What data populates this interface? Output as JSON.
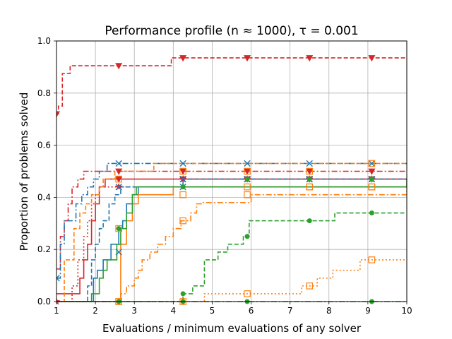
{
  "chart_data": {
    "type": "line",
    "title": "Performance profile (n ≈ 1000), τ = 0.001",
    "xlabel": "Evaluations / minimum evaluations of any solver",
    "ylabel": "Proportion of problems solved",
    "xlim": [
      1,
      10
    ],
    "ylim": [
      0,
      1
    ],
    "x_ticks": [
      "1",
      "2",
      "3",
      "4",
      "5",
      "6",
      "7",
      "8",
      "9",
      "10"
    ],
    "y_ticks": [
      "0.0",
      "0.2",
      "0.4",
      "0.6",
      "0.8",
      "1.0"
    ],
    "grid": true,
    "legend": "none",
    "series": [
      {
        "name": "red-triangle-dashed",
        "color": "#d62728",
        "dash": "6,3",
        "marker": "triangle",
        "x": [
          1,
          1.05,
          1.15,
          1.35,
          1.5,
          3.95,
          10
        ],
        "y": [
          0.72,
          0.75,
          0.875,
          0.905,
          0.905,
          0.935,
          0.935
        ],
        "marker_x": [
          1,
          2.6,
          4.25,
          5.9,
          7.5,
          9.1
        ],
        "marker_y": [
          0.72,
          0.905,
          0.935,
          0.935,
          0.935,
          0.935
        ]
      },
      {
        "name": "red-triangle-dashdot",
        "color": "#d62728",
        "dash": "8,3,2,3",
        "marker": "triangle",
        "x": [
          1,
          1.1,
          1.2,
          1.3,
          1.4,
          1.55,
          1.7,
          10
        ],
        "y": [
          0.125,
          0.25,
          0.31,
          0.375,
          0.44,
          0.47,
          0.5,
          0.5
        ],
        "marker_x": [
          2.6,
          4.25,
          5.9,
          7.5,
          9.1
        ],
        "marker_y": [
          0.5,
          0.5,
          0.5,
          0.5,
          0.5
        ]
      },
      {
        "name": "red-triangle-solid",
        "color": "#d62728",
        "dash": "",
        "marker": "triangle",
        "x": [
          1,
          1.55,
          1.6,
          1.7,
          1.8,
          1.9,
          2.0,
          2.1,
          2.25,
          10
        ],
        "y": [
          0.03,
          0.03,
          0.09,
          0.16,
          0.22,
          0.31,
          0.375,
          0.44,
          0.47,
          0.47
        ],
        "marker_x": [
          2.6,
          4.25,
          5.9,
          7.5,
          9.1
        ],
        "marker_y": [
          0.47,
          0.47,
          0.47,
          0.47,
          0.47
        ]
      },
      {
        "name": "red-star-dotted",
        "color": "#d62728",
        "dash": "2,3",
        "marker": "star",
        "x": [
          1,
          1.4,
          1.55,
          1.7,
          1.8,
          1.9,
          2.0,
          2.1,
          10
        ],
        "y": [
          0,
          0.06,
          0.16,
          0.25,
          0.31,
          0.375,
          0.41,
          0.44,
          0.44
        ],
        "marker_x": [
          1,
          2.6,
          4.25,
          5.9,
          7.5,
          9.1
        ],
        "marker_y": [
          0,
          0.44,
          0.47,
          0.47,
          0.47,
          0.47
        ]
      },
      {
        "name": "blue-x-dashdot",
        "color": "#1f77b4",
        "dash": "8,3,2,3",
        "marker": "x",
        "x": [
          1,
          1.1,
          1.2,
          1.35,
          1.5,
          1.65,
          1.8,
          1.95,
          2.1,
          2.3,
          10
        ],
        "y": [
          0.09,
          0.22,
          0.31,
          0.31,
          0.375,
          0.41,
          0.44,
          0.47,
          0.5,
          0.53,
          0.53
        ],
        "marker_x": [
          1,
          2.6,
          4.25,
          5.9,
          7.5,
          9.1
        ],
        "marker_y": [
          0.09,
          0.53,
          0.53,
          0.53,
          0.53,
          0.53
        ]
      },
      {
        "name": "blue-x-dashed",
        "color": "#1f77b4",
        "dash": "6,3",
        "marker": "x",
        "x": [
          1,
          1.8,
          1.9,
          2.0,
          2.1,
          2.2,
          2.35,
          2.5,
          2.65,
          2.8,
          3.0,
          4.25,
          10
        ],
        "y": [
          0,
          0.06,
          0.16,
          0.22,
          0.28,
          0.31,
          0.375,
          0.41,
          0.44,
          0.44,
          0.44,
          0.47,
          0.47
        ],
        "marker_x": [
          2.6,
          4.25,
          5.9,
          7.5,
          9.1
        ],
        "marker_y": [
          0.44,
          0.47,
          0.47,
          0.47,
          0.47
        ]
      },
      {
        "name": "blue-x-solid",
        "color": "#1f77b4",
        "dash": "",
        "marker": "x",
        "x": [
          1,
          1.95,
          2.05,
          2.2,
          2.4,
          2.6,
          2.7,
          2.8,
          2.95,
          3.1,
          10
        ],
        "y": [
          0,
          0.09,
          0.12,
          0.16,
          0.22,
          0.28,
          0.31,
          0.375,
          0.41,
          0.44,
          0.44
        ],
        "marker_x": [
          2.6,
          4.25,
          5.9,
          7.5,
          9.1
        ],
        "marker_y": [
          0.19,
          0.44,
          0.47,
          0.47,
          0.47
        ]
      },
      {
        "name": "orange-square-dashdot",
        "color": "#ff7f0e",
        "dash": "8,3,2,3",
        "marker": "square",
        "x": [
          1,
          2.55,
          2.65,
          2.8,
          3.0,
          3.1,
          3.2,
          3.4,
          3.6,
          3.8,
          4.0,
          4.2,
          4.45,
          4.6,
          4.75,
          5.0,
          6.0,
          10
        ],
        "y": [
          0,
          0,
          0.03,
          0.06,
          0.09,
          0.12,
          0.16,
          0.19,
          0.22,
          0.25,
          0.28,
          0.31,
          0.34,
          0.375,
          0.38,
          0.38,
          0.41,
          0.44
        ],
        "marker_x": [
          2.6,
          4.25,
          5.9,
          7.5,
          9.1
        ],
        "marker_y": [
          0,
          0.31,
          0.41,
          0.44,
          0.44
        ]
      },
      {
        "name": "orange-square-dashed",
        "color": "#ff7f0e",
        "dash": "6,3",
        "marker": "square",
        "x": [
          1,
          1.2,
          1.45,
          1.6,
          1.75,
          1.9,
          2.1,
          2.2,
          2.5,
          3.5,
          10
        ],
        "y": [
          0,
          0.16,
          0.28,
          0.34,
          0.375,
          0.41,
          0.44,
          0.47,
          0.5,
          0.53,
          0.53
        ],
        "marker_x": [
          2.6,
          4.25,
          5.9,
          7.5,
          9.1
        ],
        "marker_y": [
          0.47,
          0.5,
          0.5,
          0.5,
          0.53
        ]
      },
      {
        "name": "orange-square-solid",
        "color": "#ff7f0e",
        "dash": "",
        "marker": "square",
        "x": [
          1,
          2.55,
          2.65,
          2.8,
          2.95,
          3.1,
          3.3,
          4.0,
          10
        ],
        "y": [
          0,
          0,
          0.22,
          0.31,
          0.375,
          0.41,
          0.41,
          0.44,
          0.44
        ],
        "marker_x": [
          2.6,
          4.25,
          5.9,
          7.5,
          9.1
        ],
        "marker_y": [
          0.28,
          0.41,
          0.44,
          0.44,
          0.44
        ]
      },
      {
        "name": "orange-square-dotted",
        "color": "#ff7f0e",
        "dash": "2,3",
        "marker": "square",
        "x": [
          1,
          4.8,
          7.3,
          7.7,
          7.85,
          8.1,
          8.3,
          8.8,
          10
        ],
        "y": [
          0,
          0.03,
          0.06,
          0.09,
          0.09,
          0.12,
          0.12,
          0.16,
          0.16
        ],
        "marker_x": [
          2.6,
          4.25,
          5.9,
          7.5,
          9.1
        ],
        "marker_y": [
          0,
          0,
          0.03,
          0.06,
          0.16
        ]
      },
      {
        "name": "green-circle-dashed",
        "color": "#2ca02c",
        "dash": "6,3",
        "marker": "circle",
        "x": [
          1,
          4.25,
          4.5,
          4.8,
          5.15,
          5.4,
          5.8,
          5.95,
          6.5,
          7.5,
          8.15,
          10
        ],
        "y": [
          0,
          0.03,
          0.06,
          0.16,
          0.19,
          0.22,
          0.25,
          0.31,
          0.31,
          0.31,
          0.34,
          0.34
        ],
        "marker_x": [
          4.25,
          5.9,
          7.5,
          9.1
        ],
        "marker_y": [
          0.03,
          0.25,
          0.31,
          0.34
        ]
      },
      {
        "name": "green-circle-solid",
        "color": "#2ca02c",
        "dash": "",
        "marker": "circle",
        "x": [
          1,
          1.9,
          2.1,
          2.2,
          2.3,
          2.45,
          2.55,
          2.65,
          2.8,
          2.95,
          3.05,
          4.75,
          10
        ],
        "y": [
          0,
          0.03,
          0.09,
          0.12,
          0.16,
          0.16,
          0.22,
          0.28,
          0.34,
          0.41,
          0.44,
          0.44,
          0.47
        ],
        "marker_x": [
          2.6,
          4.25,
          5.9,
          7.5,
          9.1
        ],
        "marker_y": [
          0.28,
          0.44,
          0.47,
          0.47,
          0.47
        ]
      },
      {
        "name": "green-circle-dashdot",
        "color": "#2ca02c",
        "dash": "8,3,2,3",
        "marker": "circle",
        "x": [
          1,
          10
        ],
        "y": [
          0,
          0
        ],
        "marker_x": [
          2.6,
          4.25,
          5.9,
          9.1
        ],
        "marker_y": [
          0,
          0,
          0,
          0
        ]
      }
    ]
  }
}
